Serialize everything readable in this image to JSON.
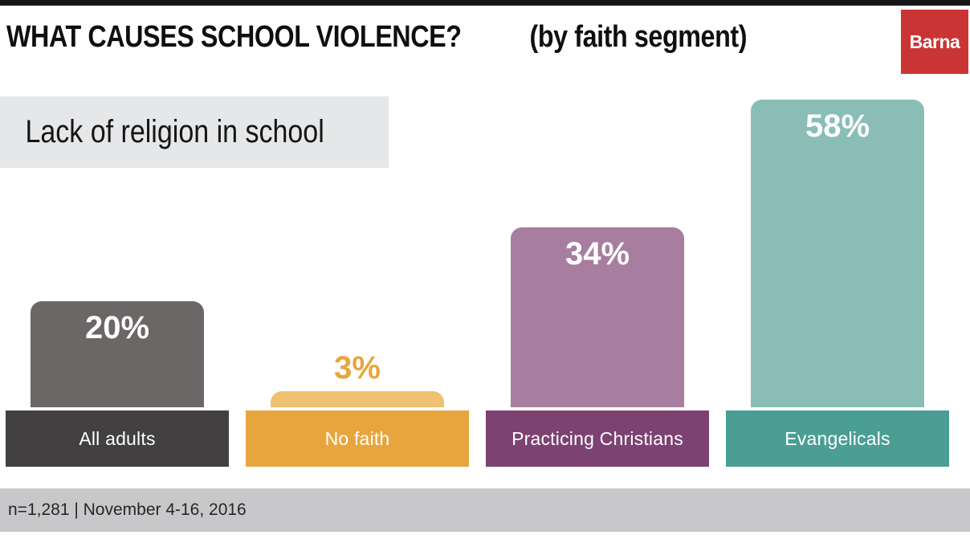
{
  "header": {
    "title": "WHAT CAUSES SCHOOL VIOLENCE?",
    "subtitle": "(by faith segment)",
    "logo_text": "Barna",
    "logo_color": "#cb3434"
  },
  "question_label": "Lack of religion in school",
  "footer": {
    "sample_note": "n=1,281 | November 4-16, 2016"
  },
  "chart_data": {
    "type": "bar",
    "title": "WHAT CAUSES SCHOOL VIOLENCE? (by faith segment)",
    "subtitle": "Lack of religion in school",
    "categories": [
      "All adults",
      "No faith",
      "Practicing Christians",
      "Evangelicals"
    ],
    "values": [
      20,
      3,
      34,
      58
    ],
    "value_labels": [
      "20%",
      "3%",
      "34%",
      "58%"
    ],
    "unit": "percent",
    "ylim": [
      0,
      60
    ],
    "grid": false,
    "legend_position": "none",
    "axis_labels": "none",
    "bar_colors": [
      "#6c6767",
      "#f0c172",
      "#a77e9f",
      "#8abdb6"
    ],
    "base_colors": [
      "#424040",
      "#e8a53e",
      "#7c4272",
      "#4a9e94"
    ],
    "value_label_placement": "inside-top, above bar when bar is too short (No faith 3%)",
    "source_note": "n=1,281 | November 4-16, 2016"
  }
}
